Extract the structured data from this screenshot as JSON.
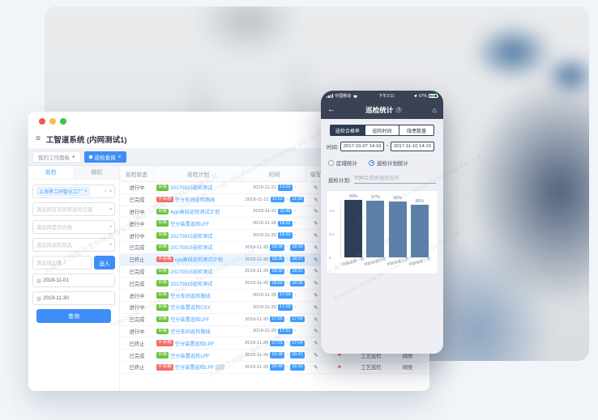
{
  "watermark": {
    "cn": "上海界工同智信息科技有限公司",
    "en": "Shanghai Inroad Information Technology Co., Ltd."
  },
  "window": {
    "menu": {
      "icon": "≡",
      "title": "工智道系统 (内网测试1)"
    },
    "tabs": {
      "inactive": "我的工作面板",
      "inactive_caret": "▾",
      "active": "巡检查询",
      "active_close": "×"
    },
    "sidebar": {
      "tab_active": "巡检",
      "tab_inactive": "随机",
      "factory_tag": "上海界工同智化工厂",
      "tag_close": "×",
      "clear_icon": "×",
      "caret": "▾",
      "filters": [
        "请选择有无异常巡检记录",
        "请选择是否合格",
        "请选择巡检状态"
      ],
      "record_placeholder": "请选择记录人",
      "pick_button": "选人",
      "date_start": "2019-11-01",
      "date_end": "2019-11-30",
      "search_button": "查询"
    },
    "table": {
      "headers": [
        "巡检状态",
        "巡检计划",
        "时间",
        "填写",
        "",
        "",
        ""
      ],
      "rows": [
        {
          "status": "进行中",
          "badge": "合格",
          "fail": false,
          "plan": "20170915巡检测试",
          "date": "2019-11-21",
          "start": "12:03",
          "end": "",
          "type": "",
          "area": "",
          "flag": false,
          "hl": false,
          "tag": false
        },
        {
          "status": "已完成",
          "badge": "不合格",
          "fail": true,
          "plan": "空分车间巡检路线",
          "date": "2019-11-21",
          "start": "11:53",
          "end": "11:58",
          "type": "",
          "area": "",
          "flag": false,
          "hl": false,
          "tag": false
        },
        {
          "status": "进行中",
          "badge": "合格",
          "fail": false,
          "plan": "4ypi高线巡检测试计划",
          "date": "2019-11-21",
          "start": "11:49",
          "end": "",
          "type": "",
          "area": "",
          "flag": false,
          "hl": false,
          "tag": false
        },
        {
          "status": "进行中",
          "badge": "合格",
          "fail": false,
          "plan": "空分装置巡检LFF",
          "date": "2019-11-20",
          "start": "18:52",
          "end": "",
          "type": "",
          "area": "",
          "flag": false,
          "hl": false,
          "tag": false
        },
        {
          "status": "进行中",
          "badge": "合格",
          "fail": false,
          "plan": "20170915巡检测试",
          "date": "2019-11-20",
          "start": "18:52",
          "end": "",
          "type": "",
          "area": "",
          "flag": false,
          "hl": false,
          "tag": false
        },
        {
          "status": "已完成",
          "badge": "合格",
          "fail": false,
          "plan": "20170915巡检测试",
          "date": "2019-11-20",
          "start": "18:38",
          "end": "18:39",
          "type": "",
          "area": "",
          "flag": false,
          "hl": false,
          "tag": false
        },
        {
          "status": "已终止",
          "badge": "不合格",
          "fail": true,
          "plan": "cyq高线巡检测试计划",
          "date": "2019-11-20",
          "start": "18:35",
          "end": "18:37",
          "type": "",
          "area": "",
          "flag": false,
          "hl": true,
          "tag": false
        },
        {
          "status": "已完成",
          "badge": "合格",
          "fail": false,
          "plan": "20170915巡检测试",
          "date": "2019-11-20",
          "start": "18:30",
          "end": "18:31",
          "type": "",
          "area": "",
          "flag": false,
          "hl": false,
          "tag": false
        },
        {
          "status": "已完成",
          "badge": "合格",
          "fail": false,
          "plan": "20170915巡检测试",
          "date": "2019-11-20",
          "start": "18:02",
          "end": "18:06",
          "type": "",
          "area": "",
          "flag": false,
          "hl": false,
          "tag": false
        },
        {
          "status": "进行中",
          "badge": "合格",
          "fail": false,
          "plan": "空分车间巡检路线",
          "date": "2019-11-20",
          "start": "17:59",
          "end": "",
          "type": "",
          "area": "",
          "flag": false,
          "hl": false,
          "tag": false
        },
        {
          "status": "进行中",
          "badge": "合格",
          "fail": false,
          "plan": "空分装置巡检CSY",
          "date": "2019-11-20",
          "start": "17:59",
          "end": "",
          "type": "",
          "area": "",
          "flag": false,
          "hl": false,
          "tag": false
        },
        {
          "status": "已完成",
          "badge": "合格",
          "fail": false,
          "plan": "空分装置巡检LFF",
          "date": "2019-11-20",
          "start": "17:55",
          "end": "17:56",
          "type": "工艺巡检",
          "area": "阀类",
          "flag": false,
          "hl": false,
          "tag": false
        },
        {
          "status": "进行中",
          "badge": "合格",
          "fail": false,
          "plan": "空分车间巡检路线",
          "date": "2019-11-20",
          "start": "17:01",
          "end": "",
          "type": "工艺巡检",
          "area": "气化工段",
          "flag": true,
          "hl": false,
          "tag": false
        },
        {
          "status": "已终止",
          "badge": "不合格",
          "fail": true,
          "plan": "空分装置巡检LPF",
          "date": "2019-11-20",
          "start": "17:01",
          "end": "17:04",
          "type": "工艺巡检",
          "area": "阀类",
          "flag": true,
          "hl": false,
          "tag": false
        },
        {
          "status": "已完成",
          "badge": "合格",
          "fail": false,
          "plan": "空分装置巡检LPF",
          "date": "2019-11-20",
          "start": "16:38",
          "end": "16:41",
          "type": "工艺巡检",
          "area": "阀类",
          "flag": true,
          "hl": false,
          "tag": false
        },
        {
          "status": "已终止",
          "badge": "不合格",
          "fail": true,
          "plan": "空分装置巡检LPF",
          "date": "2019-11-20",
          "start": "16:48",
          "end": "16:55",
          "type": "工艺巡检",
          "area": "阀类",
          "flag": true,
          "hl": false,
          "tag": true
        }
      ]
    }
  },
  "phone": {
    "status": {
      "carrier": "中国移动",
      "time": "下午2:11",
      "battery": "67%"
    },
    "nav": {
      "back": "←",
      "title": "巡检统计",
      "help": "?",
      "home": "⌂"
    },
    "segments": [
      "巡检合格率",
      "巡检时间",
      "隐患数量"
    ],
    "segment_active": 0,
    "time_label": "时间:",
    "time_from": "2017-10-07 14:10",
    "time_sep": "~",
    "time_to": "2017-11-10 14:10",
    "radio_area": "区域统计",
    "radio_plan": "巡检计划统计",
    "plan_label": "巡检计划:",
    "plan_value": "甲醇合成房值班巡检"
  },
  "chart_data": {
    "type": "bar",
    "title": "巡检合格率",
    "categories": [
      "甲醇装置一班",
      "甲醇装置四班",
      "甲醇装置三班",
      "甲醇装置二班"
    ],
    "values": [
      0.99,
      0.97,
      0.96,
      0.9
    ],
    "value_labels": [
      "99%",
      "97%",
      "96%",
      "90%"
    ],
    "ylim": [
      0,
      1
    ],
    "yticks": [
      {
        "label": "0.8",
        "v": 0.8
      },
      {
        "label": "0.4",
        "v": 0.4
      },
      {
        "label": "0",
        "v": 0
      }
    ],
    "bar_color_active": "#2e3e57",
    "bar_color": "#5d80a9",
    "xlabel": "",
    "ylabel": "",
    "legend_position": "none",
    "grid": false
  },
  "colors": {
    "accent": "#3e8ef7",
    "pass": "#67c23a",
    "fail": "#f56c6c",
    "phone_dark": "#3a4254"
  }
}
